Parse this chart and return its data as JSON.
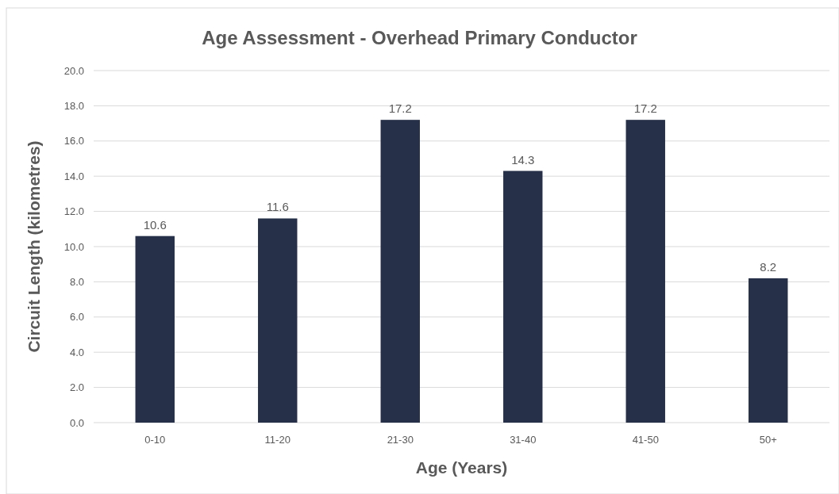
{
  "chart_data": {
    "type": "bar",
    "title": "Age Assessment - Overhead Primary Conductor",
    "xlabel": "Age (Years)",
    "ylabel": "Circuit Length (kilometres)",
    "categories": [
      "0-10",
      "11-20",
      "21-30",
      "31-40",
      "41-50",
      "50+"
    ],
    "values": [
      10.6,
      11.6,
      17.2,
      14.3,
      17.2,
      8.2
    ],
    "color": "#263048",
    "ylim": [
      0,
      20
    ],
    "yticks": [
      {
        "value": 0,
        "label": "0.0"
      },
      {
        "value": 2,
        "label": "2.0"
      },
      {
        "value": 4,
        "label": "4.0"
      },
      {
        "value": 6,
        "label": "6.0"
      },
      {
        "value": 8,
        "label": "8.0"
      },
      {
        "value": 10,
        "label": "10.0"
      },
      {
        "value": 12,
        "label": "12.0"
      },
      {
        "value": 14,
        "label": "14.0"
      },
      {
        "value": 16,
        "label": "16.0"
      },
      {
        "value": 18,
        "label": "18.0"
      },
      {
        "value": 20,
        "label": "20.0"
      }
    ],
    "grid": "y",
    "data_labels": true
  }
}
